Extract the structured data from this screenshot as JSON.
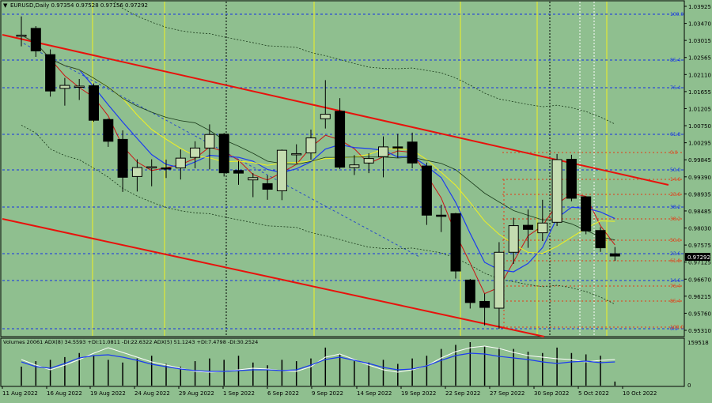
{
  "header": {
    "symbol_title": "EURUSD,Daily  0.97354 0.97528 0.97156 0.97292"
  },
  "indicator_header": "Volumes 20061  ADX(8) 34.5593 +DI:11.0811 -DI:22.6322  ADX(5) 51.1243 +DI:7.4798 -DI:30.2524",
  "price_labels": [
    "1.03925",
    "1.03470",
    "1.03015",
    "1.02565",
    "1.02110",
    "1.01655",
    "1.01205",
    "1.00750",
    "1.00295",
    "0.99845",
    "0.99390",
    "0.98935",
    "0.98485",
    "0.98030",
    "0.97575",
    "0.97125",
    "0.96670",
    "0.96215",
    "0.95760",
    "0.95310"
  ],
  "indicator_labels": [
    "159518",
    "0"
  ],
  "current_price": "0.97292",
  "date_labels": [
    "11 Aug 2022",
    "16 Aug 2022",
    "19 Aug 2022",
    "24 Aug 2022",
    "29 Aug 2022",
    "1 Sep 2022",
    "6 Sep 2022",
    "9 Sep 2022",
    "14 Sep 2022",
    "19 Sep 2022",
    "22 Sep 2022",
    "27 Sep 2022",
    "30 Sep 2022",
    "5 Oct 2022",
    "10 Oct 2022"
  ],
  "fib_blue": [
    "100.0",
    "85.4",
    "76.4",
    "61.8",
    "50.0",
    "38.2",
    "23.6",
    "14.6",
    "0.0"
  ],
  "fib_red": [
    "0.0",
    "14.6",
    "23.6",
    "38.2",
    "50.0",
    "61.8",
    "76.4",
    "85.4",
    "100.0"
  ],
  "colors": {
    "background": "#8fbf8f",
    "bull": "#c4dcb0",
    "bear": "#000000",
    "red_line": "#e8120c",
    "blue_ma": "#1c3cf0",
    "red_ma": "#cc1414",
    "yellow_ma": "#f0f020",
    "fib_blue": "#1432e6",
    "fib_red": "#e63a14",
    "vline_yellow": "#f0f020"
  },
  "chart_data": {
    "type": "candlestick",
    "title": "EURUSD,Daily",
    "ylim": [
      0.9531,
      1.0399
    ],
    "candles": [
      {
        "o": 1.0316,
        "h": 1.0368,
        "l": 1.0288,
        "c": 1.0318
      },
      {
        "o": 1.0336,
        "h": 1.0342,
        "l": 1.026,
        "c": 1.0276
      },
      {
        "o": 1.0266,
        "h": 1.028,
        "l": 1.0154,
        "c": 1.0169
      },
      {
        "o": 1.0176,
        "h": 1.0204,
        "l": 1.013,
        "c": 1.0184
      },
      {
        "o": 1.0182,
        "h": 1.0201,
        "l": 1.0145,
        "c": 1.0182
      },
      {
        "o": 1.0183,
        "h": 1.0189,
        "l": 1.0087,
        "c": 1.0091
      },
      {
        "o": 1.0093,
        "h": 1.0096,
        "l": 1.002,
        "c": 1.0035
      },
      {
        "o": 1.004,
        "h": 1.0064,
        "l": 0.99,
        "c": 0.9939
      },
      {
        "o": 0.9941,
        "h": 0.9987,
        "l": 0.9901,
        "c": 0.9965
      },
      {
        "o": 0.9964,
        "h": 0.9987,
        "l": 0.9915,
        "c": 0.9967
      },
      {
        "o": 0.9964,
        "h": 0.9986,
        "l": 0.9937,
        "c": 0.9961
      },
      {
        "o": 0.9964,
        "h": 1.0013,
        "l": 0.9933,
        "c": 0.999
      },
      {
        "o": 0.9992,
        "h": 1.0035,
        "l": 0.9963,
        "c": 1.0017
      },
      {
        "o": 1.0017,
        "h": 1.008,
        "l": 0.996,
        "c": 1.0053
      },
      {
        "o": 1.0054,
        "h": 1.0057,
        "l": 0.9941,
        "c": 0.9951
      },
      {
        "o": 0.9957,
        "h": 0.9982,
        "l": 0.9919,
        "c": 0.995
      },
      {
        "o": 0.9932,
        "h": 0.995,
        "l": 0.9886,
        "c": 0.9938
      },
      {
        "o": 0.9922,
        "h": 0.9944,
        "l": 0.9879,
        "c": 0.9907
      },
      {
        "o": 0.9903,
        "h": 1.0013,
        "l": 0.9878,
        "c": 1.0011
      },
      {
        "o": 0.9999,
        "h": 1.0027,
        "l": 0.9976,
        "c": 1.0002
      },
      {
        "o": 1.0004,
        "h": 1.0066,
        "l": 0.9986,
        "c": 1.0044
      },
      {
        "o": 1.0095,
        "h": 1.0198,
        "l": 1.0069,
        "c": 1.0107
      },
      {
        "o": 1.0115,
        "h": 1.015,
        "l": 0.9961,
        "c": 0.9966
      },
      {
        "o": 0.9965,
        "h": 0.9998,
        "l": 0.9945,
        "c": 0.9972
      },
      {
        "o": 0.9977,
        "h": 1.0003,
        "l": 0.995,
        "c": 0.9989
      },
      {
        "o": 0.9994,
        "h": 1.0048,
        "l": 0.9939,
        "c": 1.002
      },
      {
        "o": 1.002,
        "h": 1.0055,
        "l": 0.9991,
        "c": 1.0019
      },
      {
        "o": 1.0033,
        "h": 1.0058,
        "l": 0.9963,
        "c": 0.9977
      },
      {
        "o": 0.9969,
        "h": 0.9978,
        "l": 0.9812,
        "c": 0.9838
      },
      {
        "o": 0.9838,
        "h": 0.9866,
        "l": 0.9793,
        "c": 0.9837
      },
      {
        "o": 0.9842,
        "h": 0.9844,
        "l": 0.9669,
        "c": 0.9689
      },
      {
        "o": 0.9665,
        "h": 0.9668,
        "l": 0.9589,
        "c": 0.9605
      },
      {
        "o": 0.9608,
        "h": 0.9629,
        "l": 0.9544,
        "c": 0.9592
      },
      {
        "o": 0.959,
        "h": 0.9766,
        "l": 0.9535,
        "c": 0.9739
      },
      {
        "o": 0.9739,
        "h": 0.9831,
        "l": 0.9708,
        "c": 0.981
      },
      {
        "o": 0.9811,
        "h": 0.9853,
        "l": 0.9751,
        "c": 0.98
      },
      {
        "o": 0.9791,
        "h": 0.9879,
        "l": 0.9769,
        "c": 0.9817
      },
      {
        "o": 0.9819,
        "h": 1.0001,
        "l": 0.9809,
        "c": 0.9986
      },
      {
        "o": 0.9987,
        "h": 0.9999,
        "l": 0.9875,
        "c": 0.9883
      },
      {
        "o": 0.9887,
        "h": 0.9885,
        "l": 0.9787,
        "c": 0.9796
      },
      {
        "o": 0.9797,
        "h": 0.9806,
        "l": 0.974,
        "c": 0.9751
      },
      {
        "o": 0.9735,
        "h": 0.9753,
        "l": 0.9716,
        "c": 0.9729
      }
    ],
    "volumes": [
      70,
      90,
      95,
      105,
      120,
      110,
      95,
      85,
      100,
      110,
      80,
      70,
      90,
      100,
      95,
      110,
      85,
      75,
      95,
      90,
      100,
      140,
      115,
      90,
      85,
      95,
      80,
      100,
      110,
      135,
      150,
      160,
      145,
      140,
      135,
      125,
      120,
      140,
      120,
      115,
      110,
      15
    ]
  }
}
